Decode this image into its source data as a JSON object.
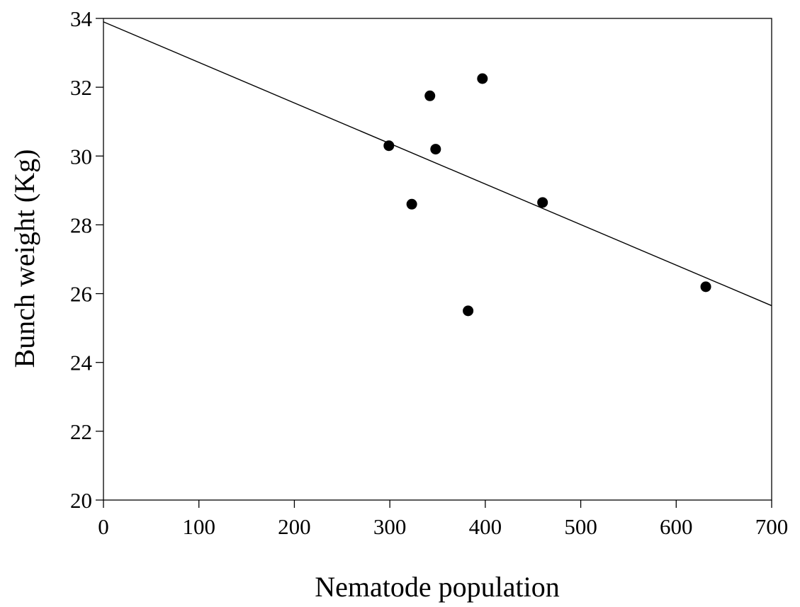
{
  "chart_data": {
    "type": "scatter",
    "title": "",
    "xlabel": "Nematode population",
    "ylabel": "Bunch weight (Kg)",
    "xlim": [
      0,
      700
    ],
    "ylim": [
      20,
      34
    ],
    "x_ticks": [
      0,
      100,
      200,
      300,
      400,
      500,
      600,
      700
    ],
    "y_ticks": [
      20,
      22,
      24,
      26,
      28,
      30,
      32,
      34
    ],
    "grid": false,
    "legend": "none",
    "series": [
      {
        "points": [
          {
            "x": 299,
            "y": 30.3
          },
          {
            "x": 323,
            "y": 28.6
          },
          {
            "x": 342,
            "y": 31.75
          },
          {
            "x": 348,
            "y": 30.2
          },
          {
            "x": 382,
            "y": 25.5
          },
          {
            "x": 397,
            "y": 32.25
          },
          {
            "x": 460,
            "y": 28.65
          },
          {
            "x": 631,
            "y": 26.2
          }
        ]
      }
    ],
    "trendline": {
      "type": "linear",
      "points": [
        {
          "x": 0,
          "y": 33.9
        },
        {
          "x": 700,
          "y": 25.65
        }
      ]
    },
    "colors": {
      "marker": "#000000",
      "line": "#000000",
      "axis": "#000000"
    }
  }
}
